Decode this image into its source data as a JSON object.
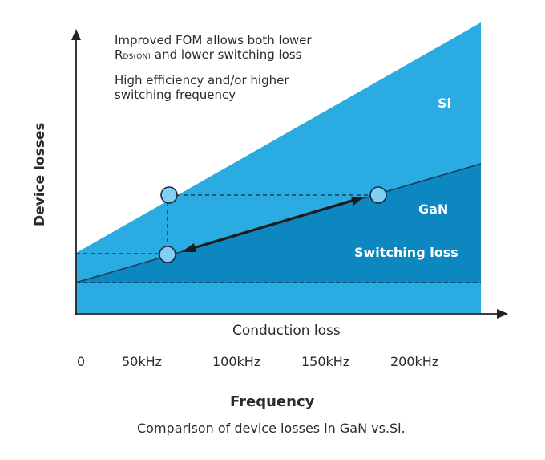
{
  "notes": {
    "line1": "Improved FOM allows both lower",
    "line2_prefix": "R",
    "line2_subscript": "DS(ON)",
    "line2_suffix": " and lower switching loss",
    "line3": "High efficiency and/or higher",
    "line4": "switching frequency"
  },
  "regions": {
    "si": "Si",
    "gan": "GaN",
    "switching": "Switching loss"
  },
  "axes": {
    "y_label": "Device losses",
    "x_label": "Conduction loss"
  },
  "ticks": [
    "0",
    "50kHz",
    "100kHz",
    "150kHz",
    "200kHz"
  ],
  "frequency_label": "Frequency",
  "caption": "Comparison of device losses in GaN vs.Si.",
  "colors": {
    "si_fill": "#2aabe2",
    "gan_fill": "#0c87c0",
    "marker_fill": "#7fd0f3",
    "dark": "#222222"
  }
}
